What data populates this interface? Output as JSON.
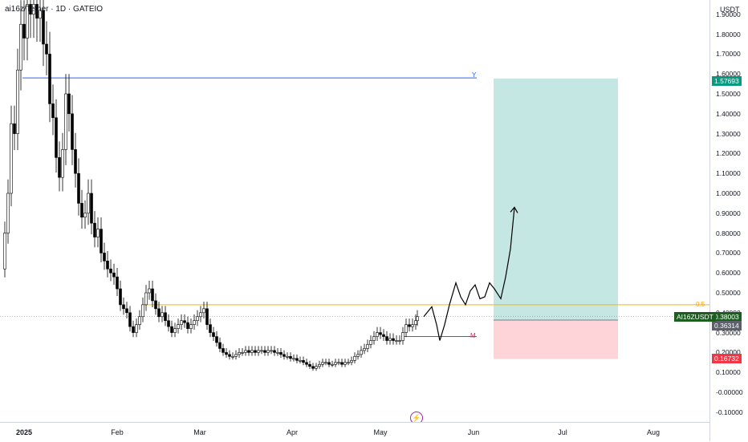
{
  "header": {
    "title": "ai16z/Tether · 1D · GATEIO"
  },
  "axis": {
    "currency": "USDT",
    "price_ticks": [
      "1.90000",
      "1.80000",
      "1.70000",
      "1.60000",
      "1.50000",
      "1.40000",
      "1.30000",
      "1.20000",
      "1.10000",
      "1.00000",
      "0.90000",
      "0.80000",
      "0.70000",
      "0.60000",
      "0.50000",
      "0.40000",
      "0.30000",
      "0.20000",
      "0.10000",
      "-0.00000",
      "-0.10000"
    ],
    "time_ticks": [
      {
        "label": "2025",
        "bold": true
      },
      {
        "label": "Feb",
        "bold": false
      },
      {
        "label": "Mar",
        "bold": false
      },
      {
        "label": "Apr",
        "bold": false
      },
      {
        "label": "May",
        "bold": false
      },
      {
        "label": "Jun",
        "bold": false
      },
      {
        "label": "Jul",
        "bold": false
      },
      {
        "label": "Aug",
        "bold": false
      }
    ]
  },
  "price_tags": {
    "target": "1.57693",
    "symbol": "AI16ZUSDT",
    "last": "0.38003",
    "entry": "0.36314",
    "stop": "0.16732"
  },
  "levels": {
    "y_label": "Y",
    "half_label": "0.5",
    "m_label": "M"
  },
  "colors": {
    "up": "#ffffff",
    "down": "#000000",
    "blue_level": "#2962ff",
    "orange_level": "#f7b500",
    "m_level": "#e91e63",
    "profit_zone": "#b2dfdb",
    "loss_zone": "#ffcdd2",
    "target_tag": "#089981",
    "symbol_tag": "#1b5e20",
    "stop_tag": "#f23645"
  },
  "icons": {
    "replay": "lightning-icon"
  },
  "chart_data": {
    "type": "candlestick",
    "symbol": "ai16z/Tether",
    "interval": "1D",
    "exchange": "GATEIO",
    "ylim": [
      -0.13,
      1.95
    ],
    "grid": false,
    "price_levels": [
      {
        "label": "Y",
        "value": 1.58
      },
      {
        "label": "0.5",
        "value": 0.44
      },
      {
        "label": "M",
        "value": 0.28
      }
    ],
    "position": {
      "type": "long",
      "entry": 0.36314,
      "target": 1.57693,
      "stop": 0.16732
    },
    "last_price": 0.38003
  }
}
